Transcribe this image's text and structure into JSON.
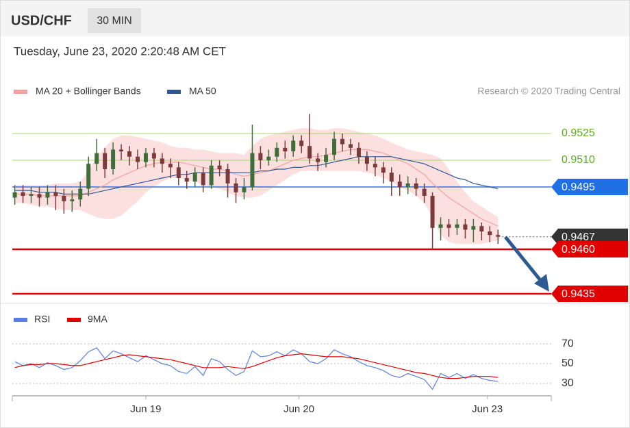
{
  "chart_data": [
    {
      "type": "candlestick",
      "title": "USD/CHF",
      "interval": "30 MIN",
      "subtitle": "Tuesday, June 23, 2020 2:20:48 AM CET",
      "source": "Research © 2020 Trading Central",
      "up_color": "#3f6e3a",
      "down_color": "#7b3b3b",
      "open": [
        0.9489,
        0.9492,
        0.949,
        0.9491,
        0.9489,
        0.9492,
        0.949,
        0.9487,
        0.9488,
        0.9494,
        0.9508,
        0.9514,
        0.9505,
        0.9516,
        0.9515,
        0.9512,
        0.9509,
        0.9514,
        0.9511,
        0.9508,
        0.9506,
        0.95,
        0.9498,
        0.9503,
        0.9496,
        0.9507,
        0.9505,
        0.9497,
        0.9492,
        0.9495,
        0.9514,
        0.951,
        0.9512,
        0.9517,
        0.9515,
        0.9521,
        0.9518,
        0.9511,
        0.9509,
        0.9513,
        0.9522,
        0.9519,
        0.9517,
        0.9512,
        0.9508,
        0.9506,
        0.9503,
        0.9498,
        0.9495,
        0.9497,
        0.9494,
        0.949,
        0.9472,
        0.9474,
        0.9472,
        0.9474,
        0.9471,
        0.9473,
        0.947,
        0.9468
      ],
      "high": [
        0.9496,
        0.9496,
        0.9495,
        0.9495,
        0.9496,
        0.9496,
        0.9494,
        0.9493,
        0.9498,
        0.9512,
        0.9522,
        0.9517,
        0.952,
        0.9519,
        0.9518,
        0.9516,
        0.9517,
        0.9517,
        0.9514,
        0.9511,
        0.9509,
        0.9504,
        0.9506,
        0.9506,
        0.951,
        0.951,
        0.9508,
        0.95,
        0.95,
        0.953,
        0.9518,
        0.9516,
        0.952,
        0.9521,
        0.9524,
        0.9524,
        0.9536,
        0.9514,
        0.9517,
        0.9526,
        0.9525,
        0.9522,
        0.952,
        0.9515,
        0.9512,
        0.9509,
        0.9506,
        0.9502,
        0.9501,
        0.95,
        0.9497,
        0.9492,
        0.9478,
        0.9477,
        0.9477,
        0.9477,
        0.9477,
        0.9475,
        0.9473,
        0.9471
      ],
      "low": [
        0.9485,
        0.9486,
        0.9486,
        0.9484,
        0.9485,
        0.9482,
        0.948,
        0.9481,
        0.9484,
        0.949,
        0.9504,
        0.95,
        0.9502,
        0.951,
        0.9507,
        0.9505,
        0.9506,
        0.9506,
        0.9503,
        0.95,
        0.9496,
        0.9494,
        0.9495,
        0.9492,
        0.9494,
        0.9501,
        0.9489,
        0.9486,
        0.9488,
        0.9493,
        0.9505,
        0.9507,
        0.9509,
        0.9511,
        0.9512,
        0.9514,
        0.9508,
        0.9504,
        0.9506,
        0.951,
        0.9515,
        0.9513,
        0.9508,
        0.9504,
        0.9501,
        0.9497,
        0.949,
        0.949,
        0.9491,
        0.949,
        0.9486,
        0.946,
        0.9465,
        0.9467,
        0.9468,
        0.9466,
        0.9464,
        0.9465,
        0.9464,
        0.9463
      ],
      "close": [
        0.9492,
        0.949,
        0.9491,
        0.9489,
        0.9492,
        0.949,
        0.9487,
        0.9488,
        0.9494,
        0.9508,
        0.9514,
        0.9505,
        0.9516,
        0.9515,
        0.9512,
        0.9509,
        0.9514,
        0.9511,
        0.9508,
        0.9506,
        0.95,
        0.9498,
        0.9503,
        0.9496,
        0.9507,
        0.9505,
        0.9497,
        0.9492,
        0.9495,
        0.9514,
        0.951,
        0.9512,
        0.9517,
        0.9515,
        0.9521,
        0.9518,
        0.9511,
        0.9509,
        0.9513,
        0.9522,
        0.9519,
        0.9517,
        0.9512,
        0.9508,
        0.9506,
        0.9503,
        0.9498,
        0.9495,
        0.9497,
        0.9494,
        0.949,
        0.9472,
        0.9474,
        0.9472,
        0.9474,
        0.9471,
        0.9473,
        0.947,
        0.9468,
        0.9467
      ],
      "overlays": [
        {
          "name": "MA 20 + Bollinger Bands",
          "color": "#f4a0a0",
          "values": [
            0.9491,
            0.9491,
            0.9491,
            0.949,
            0.949,
            0.949,
            0.949,
            0.949,
            0.949,
            0.9492,
            0.9494,
            0.9496,
            0.9499,
            0.9501,
            0.9503,
            0.9505,
            0.9507,
            0.9508,
            0.9509,
            0.9509,
            0.9509,
            0.9508,
            0.9507,
            0.9506,
            0.9505,
            0.9505,
            0.9504,
            0.9502,
            0.9501,
            0.9502,
            0.9503,
            0.9504,
            0.9506,
            0.9508,
            0.951,
            0.9511,
            0.9512,
            0.9512,
            0.9513,
            0.9514,
            0.9515,
            0.9516,
            0.9516,
            0.9516,
            0.9515,
            0.9514,
            0.9512,
            0.951,
            0.9508,
            0.9505,
            0.9502,
            0.9497,
            0.9493,
            0.9489,
            0.9486,
            0.9483,
            0.948,
            0.9477,
            0.9475,
            0.9473
          ],
          "upper": [
            0.9496,
            0.9496,
            0.9496,
            0.9496,
            0.9496,
            0.9497,
            0.9497,
            0.9497,
            0.9498,
            0.9504,
            0.9512,
            0.9517,
            0.9522,
            0.9524,
            0.9524,
            0.9523,
            0.9522,
            0.9521,
            0.952,
            0.9518,
            0.9517,
            0.9517,
            0.9516,
            0.9516,
            0.9515,
            0.9514,
            0.9514,
            0.9514,
            0.9513,
            0.9518,
            0.9522,
            0.9524,
            0.9525,
            0.9526,
            0.9527,
            0.9528,
            0.9528,
            0.9527,
            0.9527,
            0.9528,
            0.9528,
            0.9527,
            0.9526,
            0.9525,
            0.9524,
            0.9522,
            0.952,
            0.9518,
            0.9516,
            0.9515,
            0.9514,
            0.9513,
            0.9511,
            0.9505,
            0.9498,
            0.9492,
            0.9487,
            0.9484,
            0.9481,
            0.9478
          ],
          "lower": [
            0.9486,
            0.9486,
            0.9485,
            0.9484,
            0.9484,
            0.9483,
            0.9482,
            0.9482,
            0.9482,
            0.948,
            0.9478,
            0.9477,
            0.9477,
            0.9479,
            0.9483,
            0.9487,
            0.9492,
            0.9495,
            0.9498,
            0.95,
            0.95,
            0.9499,
            0.9498,
            0.9496,
            0.9495,
            0.9494,
            0.9492,
            0.949,
            0.9489,
            0.9489,
            0.949,
            0.9493,
            0.9496,
            0.9499,
            0.9502,
            0.9504,
            0.9504,
            0.9504,
            0.9504,
            0.9504,
            0.9504,
            0.9504,
            0.9504,
            0.9503,
            0.9502,
            0.95,
            0.9498,
            0.9495,
            0.9493,
            0.949,
            0.9486,
            0.9478,
            0.9468,
            0.9464,
            0.9463,
            0.9463,
            0.9463,
            0.9463,
            0.9464,
            0.9465
          ]
        },
        {
          "name": "MA 50",
          "color": "#2f5597",
          "values": [
            0.9493,
            0.9493,
            0.9493,
            0.9492,
            0.9492,
            0.9492,
            0.9491,
            0.9491,
            0.9491,
            0.9491,
            0.9492,
            0.9493,
            0.9494,
            0.9495,
            0.9496,
            0.9497,
            0.9498,
            0.9499,
            0.95,
            0.9501,
            0.9502,
            0.9502,
            0.9503,
            0.9503,
            0.9503,
            0.9503,
            0.9503,
            0.9503,
            0.9503,
            0.9503,
            0.9504,
            0.9504,
            0.9505,
            0.9505,
            0.9506,
            0.9506,
            0.9507,
            0.9507,
            0.9508,
            0.9509,
            0.951,
            0.9511,
            0.9512,
            0.9512,
            0.9512,
            0.9512,
            0.9512,
            0.9511,
            0.951,
            0.9509,
            0.9508,
            0.9506,
            0.9504,
            0.9502,
            0.95,
            0.9499,
            0.9497,
            0.9496,
            0.9495,
            0.9494
          ]
        }
      ],
      "levels": [
        {
          "value": 0.9525,
          "color": "#5aae1e",
          "line": "#a5d46a",
          "width": 1,
          "style": "solid",
          "tag": "text"
        },
        {
          "value": 0.951,
          "label": "0.9510",
          "color": "#5aae1e",
          "line": "#a5d46a",
          "width": 1,
          "style": "solid",
          "tag": "text"
        },
        {
          "value": 0.9495,
          "color": "#1f6fe5",
          "line": "#3d6fe0",
          "width": 1.5,
          "style": "solid",
          "tag": "box"
        },
        {
          "value": 0.9467,
          "color": "#333333",
          "line": "#555555",
          "width": 1,
          "style": "dotted",
          "tag": "box"
        },
        {
          "value": 0.946,
          "label": "0.9460",
          "color": "#e00000",
          "line": "#e00000",
          "width": 2.5,
          "style": "solid",
          "tag": "box"
        },
        {
          "value": 0.9435,
          "color": "#e00000",
          "line": "#e00000",
          "width": 2.5,
          "style": "solid",
          "tag": "box"
        }
      ],
      "xlim": [
        -0.3,
        65.5
      ],
      "ylim": [
        0.943,
        0.954
      ]
    },
    {
      "type": "line",
      "series": [
        {
          "name": "RSI",
          "color": "#5b7fe0",
          "values": [
            52,
            48,
            50,
            46,
            51,
            48,
            44,
            46,
            53,
            62,
            66,
            55,
            63,
            60,
            56,
            52,
            58,
            54,
            50,
            48,
            42,
            40,
            47,
            38,
            55,
            52,
            44,
            38,
            42,
            63,
            57,
            58,
            62,
            58,
            64,
            60,
            52,
            50,
            55,
            64,
            60,
            57,
            52,
            48,
            46,
            43,
            38,
            36,
            40,
            37,
            34,
            24,
            40,
            36,
            40,
            35,
            39,
            35,
            33,
            32
          ]
        },
        {
          "name": "9MA",
          "color": "#e00000",
          "values": [
            46,
            48,
            49,
            49,
            50,
            50,
            49,
            48,
            48,
            50,
            52,
            54,
            56,
            58,
            59,
            58,
            57,
            56,
            55,
            54,
            52,
            50,
            48,
            46,
            46,
            46,
            47,
            46,
            45,
            47,
            50,
            53,
            56,
            58,
            59,
            60,
            59,
            58,
            57,
            57,
            57,
            56,
            55,
            53,
            51,
            49,
            47,
            45,
            43,
            41,
            40,
            38,
            36,
            35,
            35,
            36,
            37,
            37,
            37,
            36
          ]
        }
      ],
      "xlim": [
        -0.3,
        65.5
      ],
      "ylim": [
        16,
        84
      ],
      "yticks": [
        30,
        50,
        70
      ],
      "grid": true,
      "xticks": [
        {
          "value": 16,
          "label": "Jun 19"
        },
        {
          "value": 34.7,
          "label": "Jun 20"
        },
        {
          "value": 57.7,
          "label": "Jun 23"
        }
      ]
    }
  ]
}
